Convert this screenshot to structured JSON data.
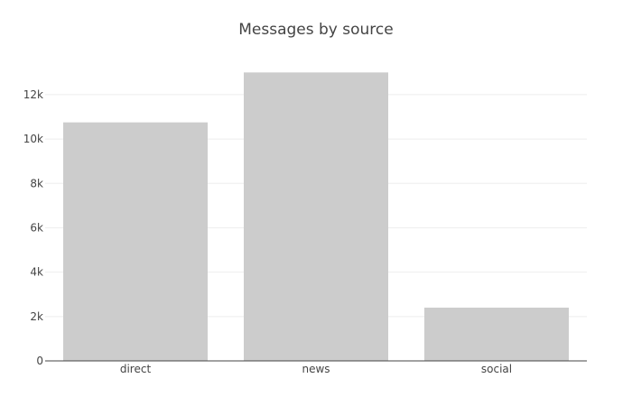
{
  "chart_data": {
    "type": "bar",
    "title": "Messages by source",
    "xlabel": "",
    "ylabel": "",
    "categories": [
      "direct",
      "news",
      "social"
    ],
    "values": [
      10750,
      13000,
      2400
    ],
    "ylim": [
      0,
      13500
    ],
    "yticks": [
      0,
      2000,
      4000,
      6000,
      8000,
      10000,
      12000
    ],
    "ytick_labels": [
      "0",
      "2k",
      "4k",
      "6k",
      "8k",
      "10k",
      "12k"
    ],
    "bar_color": "#cccccc",
    "grid": true,
    "legend": "none"
  }
}
